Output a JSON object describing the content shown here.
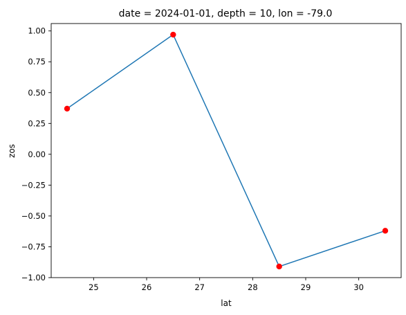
{
  "chart_data": {
    "type": "line",
    "title": "date = 2024-01-01, depth = 10, lon = -79.0",
    "xlabel": "lat",
    "ylabel": "zos",
    "x": [
      24.5,
      26.5,
      28.5,
      30.5
    ],
    "series": [
      {
        "values": [
          0.37,
          0.97,
          -0.91,
          -0.62
        ],
        "line_color": "#1f77b4",
        "marker_color": "#ff0000"
      }
    ],
    "xlim": [
      24.2,
      30.8
    ],
    "ylim": [
      -1.0,
      1.06
    ],
    "xticks": [
      "25",
      "26",
      "27",
      "28",
      "29",
      "30"
    ],
    "yticks": [
      "1.00",
      "0.75",
      "0.50",
      "0.25",
      "0.00",
      "−0.25",
      "−0.50",
      "−0.75",
      "−1.00"
    ],
    "grid": false,
    "legend": "none"
  }
}
